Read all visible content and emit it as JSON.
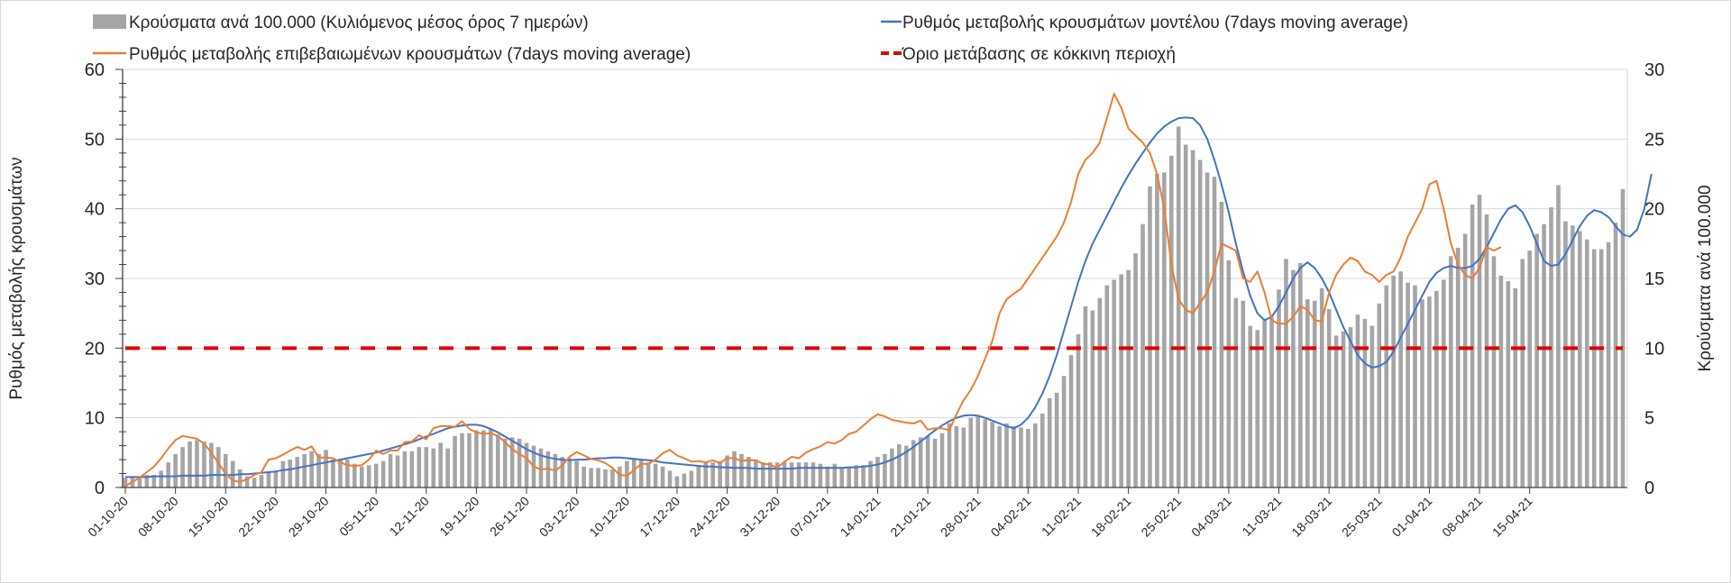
{
  "chart_data": {
    "type": "bar+line",
    "title": "",
    "legend": {
      "placement": "top",
      "entries": [
        {
          "key": "bars",
          "label": "Κρούσματα ανά 100.000 (Κυλιόμενος μέσος όρος 7 ημερών)",
          "color": "#a5a5a5",
          "style": "bar"
        },
        {
          "key": "model",
          "label": "Ρυθμός μεταβολής κρουσμάτων μοντέλου (7days moving average)",
          "color": "#4472c4",
          "style": "line"
        },
        {
          "key": "confirmed",
          "label": "Ρυθμός μεταβολής επιβεβαιωμένων κρουσμάτων (7days moving average)",
          "color": "#ed7d31",
          "style": "line"
        },
        {
          "key": "threshold",
          "label": "Όριο μετάβασης σε κόκκινη περιοχή",
          "color": "#e00000",
          "style": "dashed"
        }
      ]
    },
    "ylabel": "Ρυθμός μεταβολής κρουσμάτων",
    "y2label": "Κρούσματα ανά 100.000",
    "ylim": [
      0,
      60
    ],
    "y2lim": [
      0,
      30
    ],
    "yticks": [
      "0",
      "10",
      "20",
      "30",
      "40",
      "50",
      "60"
    ],
    "y2ticks": [
      "0",
      "5",
      "10",
      "15",
      "20",
      "25",
      "30"
    ],
    "grid": true,
    "threshold_value": 20,
    "start_date": "01-10-20",
    "end_date": "15-04-21",
    "xtick_labels": [
      "01-10-20",
      "08-10-20",
      "15-10-20",
      "22-10-20",
      "29-10-20",
      "05-11-20",
      "12-11-20",
      "19-11-20",
      "26-11-20",
      "03-12-20",
      "10-12-20",
      "17-12-20",
      "24-12-20",
      "31-12-20",
      "07-01-21",
      "14-01-21",
      "21-01-21",
      "28-01-21",
      "04-02-21",
      "11-02-21",
      "18-02-21",
      "25-02-21",
      "04-03-21",
      "11-03-21",
      "18-03-21",
      "25-03-21",
      "01-04-21",
      "08-04-21",
      "15-04-21"
    ],
    "bars_weekly_days": "daily",
    "bars": [
      0.7,
      0.8,
      0.7,
      0.9,
      0.9,
      1.2,
      1.8,
      2.4,
      2.9,
      3.3,
      3.4,
      3.3,
      3.2,
      2.9,
      2.4,
      1.9,
      1.3,
      0.8,
      0.7,
      0.9,
      1.1,
      1.2,
      1.9,
      2.0,
      2.2,
      2.4,
      2.6,
      2.4,
      2.7,
      2.0,
      2.0,
      2.0,
      1.7,
      1.5,
      1.6,
      1.7,
      1.9,
      2.4,
      2.3,
      2.6,
      2.6,
      2.9,
      2.9,
      2.8,
      3.2,
      2.8,
      3.7,
      3.9,
      3.9,
      4.1,
      4.1,
      4.2,
      3.8,
      3.5,
      3.6,
      3.5,
      3.2,
      3.0,
      2.8,
      2.6,
      2.4,
      2.2,
      2.1,
      1.9,
      1.5,
      1.4,
      1.4,
      1.3,
      1.3,
      1.5,
      1.9,
      2.1,
      2.0,
      1.8,
      1.7,
      1.5,
      1.2,
      0.8,
      1.0,
      1.2,
      1.6,
      1.8,
      1.8,
      1.9,
      2.3,
      2.6,
      2.4,
      2.2,
      2.0,
      1.8,
      1.8,
      1.8,
      1.8,
      1.8,
      1.8,
      1.8,
      1.8,
      1.7,
      1.5,
      1.7,
      1.4,
      1.5,
      1.6,
      1.6,
      1.9,
      2.2,
      2.4,
      2.8,
      3.1,
      3.0,
      3.4,
      3.6,
      3.7,
      3.5,
      3.9,
      4.6,
      4.4,
      4.3,
      5.0,
      5.1,
      4.9,
      4.7,
      4.4,
      4.6,
      4.4,
      4.3,
      4.2,
      4.6,
      5.3,
      6.4,
      6.8,
      8.0,
      9.5,
      11.0,
      13.0,
      12.7,
      13.6,
      14.5,
      14.9,
      15.3,
      15.6,
      16.8,
      18.9,
      21.6,
      22.5,
      22.6,
      23.8,
      25.9,
      24.6,
      24.2,
      23.5,
      22.6,
      22.3,
      20.5,
      16.3,
      13.6,
      13.4,
      11.6,
      11.3,
      12.0,
      12.2,
      14.2,
      16.4,
      15.6,
      16.1,
      13.5,
      13.4,
      14.3,
      12.8,
      10.9,
      11.2,
      11.5,
      12.4,
      12.1,
      11.6,
      13.2,
      14.5,
      15.2,
      15.5,
      14.7,
      14.5,
      13.5,
      13.7,
      14.1,
      14.9,
      16.6,
      17.2,
      18.2,
      20.3,
      21.0,
      19.6,
      16.6,
      15.2,
      14.8,
      14.3,
      16.4,
      17.0,
      18.2,
      18.9,
      20.1,
      21.7,
      19.1,
      18.8,
      18.4,
      17.8,
      17.1,
      17.1,
      17.6,
      19.0,
      21.4
    ],
    "model_line": [
      1.5,
      1.5,
      1.5,
      1.5,
      1.6,
      1.6,
      1.6,
      1.6,
      1.7,
      1.7,
      1.7,
      1.7,
      1.8,
      1.8,
      1.8,
      1.8,
      1.9,
      1.9,
      2.0,
      2.1,
      2.2,
      2.3,
      2.5,
      2.6,
      2.8,
      3.0,
      3.2,
      3.4,
      3.6,
      3.8,
      4.0,
      4.2,
      4.4,
      4.6,
      4.8,
      5.0,
      5.3,
      5.6,
      5.9,
      6.2,
      6.5,
      6.9,
      7.3,
      7.7,
      8.1,
      8.5,
      8.7,
      8.9,
      9.0,
      9.0,
      8.8,
      8.4,
      7.9,
      7.3,
      6.7,
      6.1,
      5.5,
      5.0,
      4.6,
      4.3,
      4.1,
      4.0,
      3.9,
      4.0,
      4.0,
      4.1,
      4.2,
      4.2,
      4.3,
      4.3,
      4.2,
      4.1,
      4.0,
      3.9,
      3.8,
      3.6,
      3.5,
      3.4,
      3.3,
      3.2,
      3.1,
      3.0,
      3.0,
      2.9,
      2.9,
      2.8,
      2.8,
      2.8,
      2.7,
      2.7,
      2.7,
      2.7,
      2.7,
      2.7,
      2.8,
      2.8,
      2.8,
      2.8,
      2.8,
      2.8,
      2.8,
      2.9,
      2.9,
      3.0,
      3.1,
      3.3,
      3.6,
      4.0,
      4.5,
      5.1,
      5.8,
      6.6,
      7.4,
      8.2,
      8.9,
      9.5,
      10.0,
      10.3,
      10.4,
      10.3,
      10.0,
      9.6,
      9.2,
      8.8,
      8.5,
      9.0,
      10.0,
      11.5,
      13.5,
      16.0,
      19.0,
      22.5,
      26.0,
      29.5,
      32.5,
      35.0,
      37.0,
      39.0,
      41.0,
      43.0,
      44.8,
      46.5,
      48.0,
      49.5,
      50.8,
      51.8,
      52.5,
      53.0,
      53.1,
      53.0,
      52.0,
      50.0,
      47.0,
      43.5,
      39.5,
      35.0,
      31.0,
      27.5,
      25.0,
      24.0,
      24.5,
      26.0,
      28.0,
      30.0,
      31.5,
      32.3,
      31.5,
      30.0,
      28.0,
      25.5,
      23.0,
      21.0,
      19.0,
      17.8,
      17.2,
      17.4,
      18.0,
      19.5,
      21.5,
      23.5,
      25.5,
      27.5,
      29.5,
      30.8,
      31.5,
      31.8,
      31.5,
      31.5,
      31.8,
      32.8,
      34.5,
      36.5,
      38.5,
      40.0,
      40.5,
      39.5,
      37.5,
      35.0,
      32.5,
      31.8,
      32.0,
      33.5,
      35.5,
      37.5,
      39.0,
      39.8,
      39.5,
      38.8,
      37.5,
      36.3,
      36.0,
      37.0,
      40.0,
      45.0
    ],
    "confirmed_line": [
      0.2,
      0.8,
      1.4,
      2.2,
      3.0,
      4.2,
      5.6,
      6.8,
      7.4,
      7.2,
      7.0,
      6.3,
      5.0,
      3.5,
      2.0,
      1.0,
      0.8,
      1.2,
      1.8,
      2.2,
      4.0,
      4.2,
      4.7,
      5.3,
      5.8,
      5.4,
      5.9,
      4.3,
      4.3,
      4.2,
      3.6,
      3.2,
      3.1,
      3.2,
      4.0,
      5.3,
      4.8,
      5.3,
      5.3,
      6.5,
      6.6,
      7.5,
      6.9,
      8.5,
      8.8,
      8.8,
      8.7,
      9.5,
      8.4,
      7.9,
      7.7,
      7.8,
      7.4,
      6.5,
      5.5,
      4.8,
      4.2,
      3.0,
      2.6,
      2.7,
      2.4,
      3.2,
      4.4,
      5.1,
      4.6,
      4.1,
      3.9,
      3.5,
      2.8,
      1.8,
      1.7,
      2.5,
      3.4,
      3.4,
      4.0,
      4.9,
      5.4,
      4.6,
      4.2,
      3.7,
      3.8,
      3.6,
      3.9,
      3.5,
      4.2,
      4.2,
      3.8,
      3.9,
      3.9,
      3.4,
      3.3,
      2.8,
      3.7,
      4.4,
      4.2,
      5.0,
      5.5,
      5.9,
      6.5,
      6.3,
      6.8,
      7.7,
      8.0,
      8.9,
      9.8,
      10.5,
      10.2,
      9.7,
      9.5,
      9.3,
      9.2,
      9.6,
      8.3,
      8.5,
      8.5,
      8.2,
      10.5,
      12.5,
      14.0,
      16.0,
      18.5,
      21.0,
      25.0,
      27.0,
      27.8,
      28.5,
      30.0,
      31.5,
      33.0,
      34.5,
      36.0,
      38.0,
      41.0,
      45.0,
      47.0,
      48.0,
      49.5,
      53.0,
      56.5,
      54.5,
      51.5,
      50.5,
      49.5,
      48.0,
      45.0,
      40.0,
      32.0,
      27.0,
      25.5,
      25.0,
      26.5,
      28.0,
      31.0,
      35.0,
      34.5,
      34.0,
      30.0,
      29.5,
      31.0,
      28.0,
      24.0,
      23.5,
      23.5,
      24.5,
      26.0,
      25.5,
      24.0,
      23.8,
      28.0,
      30.5,
      32.0,
      33.0,
      32.5,
      31.0,
      30.5,
      29.5,
      30.5,
      31.0,
      33.0,
      36.0,
      38.0,
      40.0,
      43.5,
      44.0,
      40.0,
      35.0,
      32.0,
      30.5,
      30.0,
      31.5,
      34.5,
      34.0,
      34.5
    ]
  }
}
